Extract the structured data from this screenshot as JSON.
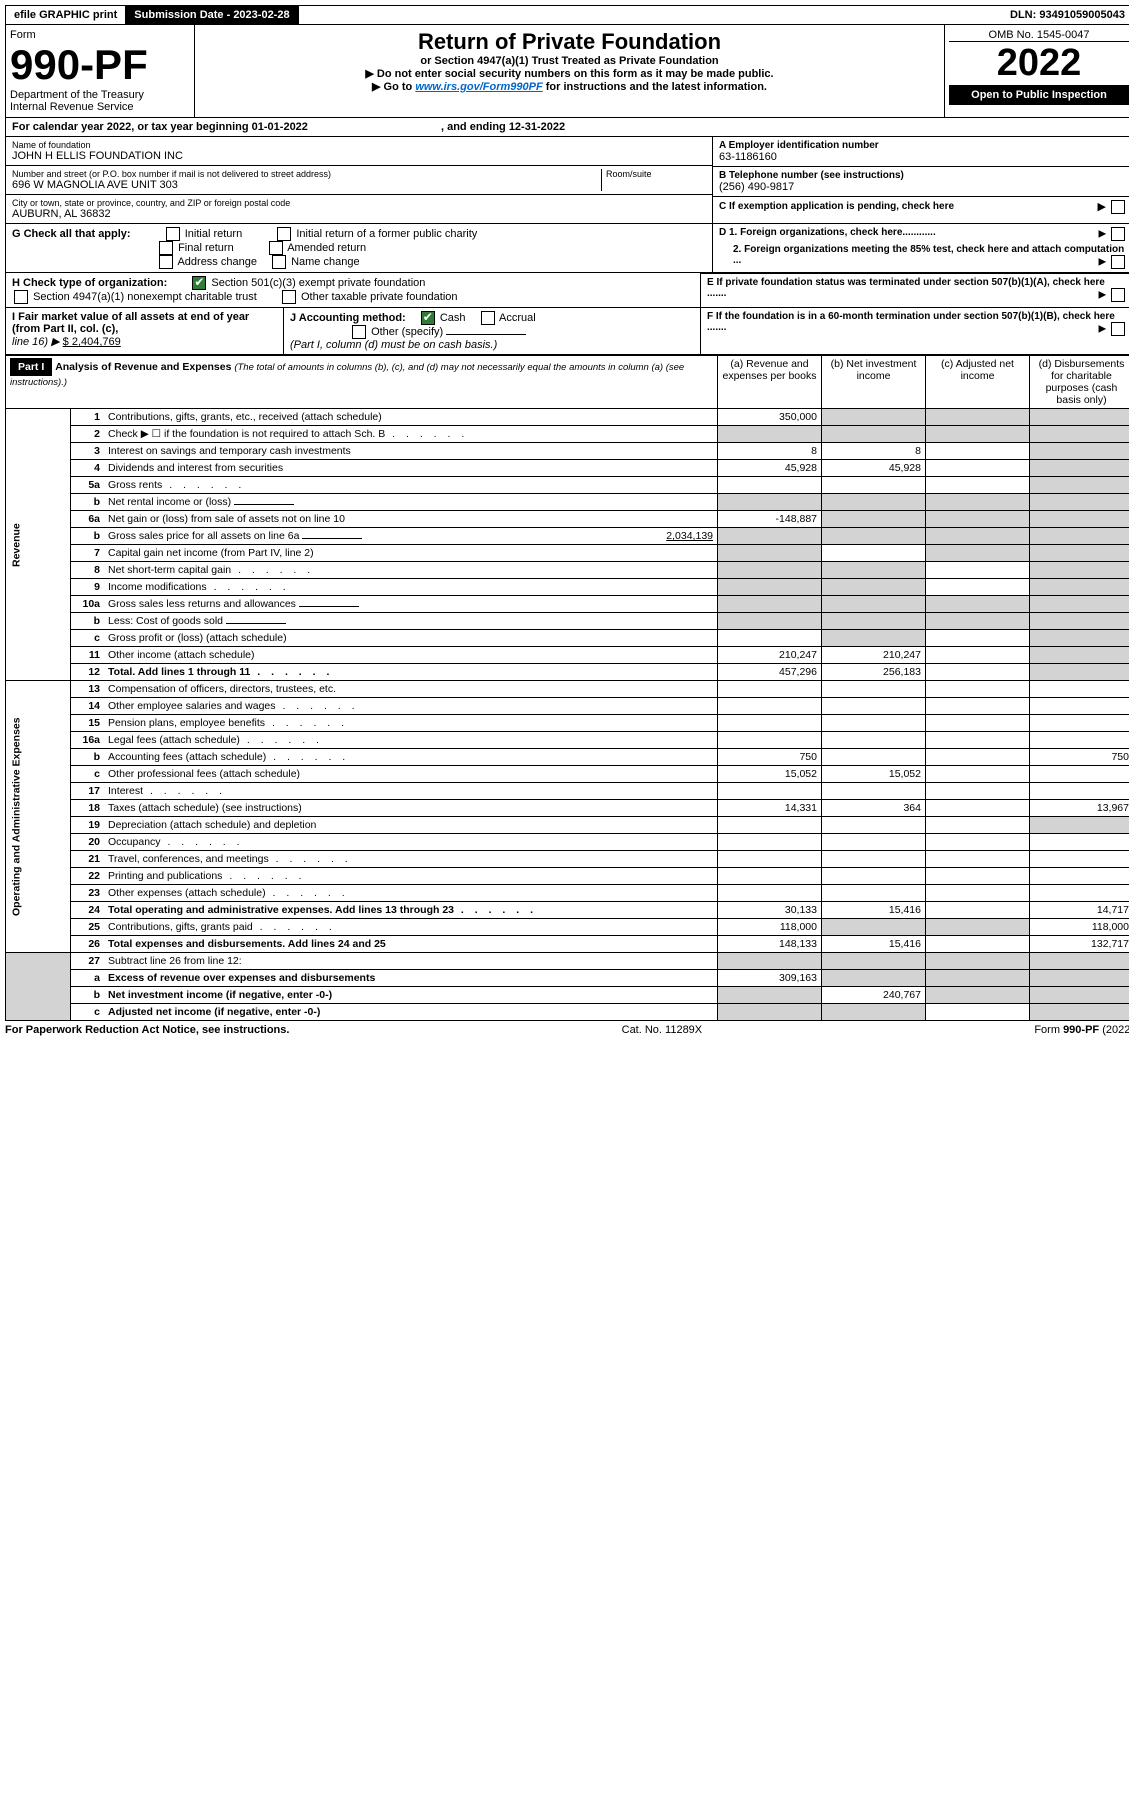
{
  "top_bar": {
    "efile": "efile GRAPHIC print",
    "sub_label": "Submission Date - 2023-02-28",
    "dln": "DLN: 93491059005043"
  },
  "header": {
    "form_label": "Form",
    "form_num": "990-PF",
    "dept1": "Department of the Treasury",
    "dept2": "Internal Revenue Service",
    "title": "Return of Private Foundation",
    "subtitle": "or Section 4947(a)(1) Trust Treated as Private Foundation",
    "instr1": "▶ Do not enter social security numbers on this form as it may be made public.",
    "instr2_pre": "▶ Go to ",
    "instr2_link": "www.irs.gov/Form990PF",
    "instr2_post": " for instructions and the latest information.",
    "omb": "OMB No. 1545-0047",
    "year": "2022",
    "open": "Open to Public Inspection"
  },
  "cal_year": "For calendar year 2022, or tax year beginning 01-01-2022",
  "cal_year_end": ", and ending 12-31-2022",
  "name_label": "Name of foundation",
  "name": "JOHN H ELLIS FOUNDATION INC",
  "addr_label": "Number and street (or P.O. box number if mail is not delivered to street address)",
  "room_label": "Room/suite",
  "addr": "696 W MAGNOLIA AVE UNIT 303",
  "city_label": "City or town, state or province, country, and ZIP or foreign postal code",
  "city": "AUBURN, AL  36832",
  "ein_label": "A Employer identification number",
  "ein": "63-1186160",
  "phone_label": "B Telephone number (see instructions)",
  "phone": "(256) 490-9817",
  "c_label": "C If exemption application is pending, check here",
  "g_label": "G Check all that apply:",
  "g_opts": [
    "Initial return",
    "Final return",
    "Address change",
    "Initial return of a former public charity",
    "Amended return",
    "Name change"
  ],
  "d1": "D 1. Foreign organizations, check here............",
  "d2": "2. Foreign organizations meeting the 85% test, check here and attach computation ...",
  "e_label": "E  If private foundation status was terminated under section 507(b)(1)(A), check here .......",
  "h_label": "H Check type of organization:",
  "h1": "Section 501(c)(3) exempt private foundation",
  "h2": "Section 4947(a)(1) nonexempt charitable trust",
  "h3": "Other taxable private foundation",
  "f_label": "F  If the foundation is in a 60-month termination under section 507(b)(1)(B), check here .......",
  "i_label": "I Fair market value of all assets at end of year (from Part II, col. (c),",
  "i_line": "line 16) ▶",
  "i_val": "$  2,404,769",
  "j_label": "J Accounting method:",
  "j_cash": "Cash",
  "j_accrual": "Accrual",
  "j_other": "Other (specify)",
  "j_note": "(Part I, column (d) must be on cash basis.)",
  "part1": "Part I",
  "part1_title": "Analysis of Revenue and Expenses",
  "part1_note": " (The total of amounts in columns (b), (c), and (d) may not necessarily equal the amounts in column (a) (see instructions).)",
  "cols": {
    "a": "(a) Revenue and expenses per books",
    "b": "(b) Net investment income",
    "c": "(c) Adjusted net income",
    "d": "(d) Disbursements for charitable purposes (cash basis only)"
  },
  "vert": {
    "rev": "Revenue",
    "exp": "Operating and Administrative Expenses"
  },
  "rows": [
    {
      "n": "1",
      "t": "Contributions, gifts, grants, etc., received (attach schedule)",
      "a": "350,000",
      "shade_b": true,
      "shade_c": true,
      "shade_d": true
    },
    {
      "n": "2",
      "t": "Check ▶ ☐ if the foundation is not required to attach Sch. B",
      "dots": true,
      "shade_a": true,
      "shade_b": true,
      "shade_c": true,
      "shade_d": true
    },
    {
      "n": "3",
      "t": "Interest on savings and temporary cash investments",
      "a": "8",
      "b": "8",
      "shade_d": true
    },
    {
      "n": "4",
      "t": "Dividends and interest from securities",
      "a": "45,928",
      "b": "45,928",
      "shade_d": true
    },
    {
      "n": "5a",
      "t": "Gross rents",
      "dots": true,
      "shade_d": true
    },
    {
      "n": "b",
      "t": "Net rental income or (loss)",
      "inset": true,
      "shade_a": true,
      "shade_b": true,
      "shade_c": true,
      "shade_d": true
    },
    {
      "n": "6a",
      "t": "Net gain or (loss) from sale of assets not on line 10",
      "a": "-148,887",
      "shade_b": true,
      "shade_c": true,
      "shade_d": true
    },
    {
      "n": "b",
      "t": "Gross sales price for all assets on line 6a",
      "inset": true,
      "iv": "2,034,139",
      "shade_a": true,
      "shade_b": true,
      "shade_c": true,
      "shade_d": true
    },
    {
      "n": "7",
      "t": "Capital gain net income (from Part IV, line 2)",
      "shade_a": true,
      "shade_c": true,
      "shade_d": true
    },
    {
      "n": "8",
      "t": "Net short-term capital gain",
      "dots": true,
      "shade_a": true,
      "shade_b": true,
      "shade_d": true
    },
    {
      "n": "9",
      "t": "Income modifications",
      "dots": true,
      "shade_a": true,
      "shade_b": true,
      "shade_d": true
    },
    {
      "n": "10a",
      "t": "Gross sales less returns and allowances",
      "inset": true,
      "shade_a": true,
      "shade_b": true,
      "shade_c": true,
      "shade_d": true
    },
    {
      "n": "b",
      "t": "Less: Cost of goods sold",
      "inset": true,
      "shade_a": true,
      "shade_b": true,
      "shade_c": true,
      "shade_d": true
    },
    {
      "n": "c",
      "t": "Gross profit or (loss) (attach schedule)",
      "shade_b": true,
      "shade_d": true
    },
    {
      "n": "11",
      "t": "Other income (attach schedule)",
      "a": "210,247",
      "b": "210,247",
      "shade_d": true
    },
    {
      "n": "12",
      "t": "Total. Add lines 1 through 11",
      "bold": true,
      "dots": true,
      "a": "457,296",
      "b": "256,183",
      "shade_d": true
    }
  ],
  "exp_rows": [
    {
      "n": "13",
      "t": "Compensation of officers, directors, trustees, etc."
    },
    {
      "n": "14",
      "t": "Other employee salaries and wages",
      "dots": true
    },
    {
      "n": "15",
      "t": "Pension plans, employee benefits",
      "dots": true
    },
    {
      "n": "16a",
      "t": "Legal fees (attach schedule)",
      "dots": true
    },
    {
      "n": "b",
      "t": "Accounting fees (attach schedule)",
      "dots": true,
      "a": "750",
      "d": "750"
    },
    {
      "n": "c",
      "t": "Other professional fees (attach schedule)",
      "a": "15,052",
      "b": "15,052"
    },
    {
      "n": "17",
      "t": "Interest",
      "dots": true
    },
    {
      "n": "18",
      "t": "Taxes (attach schedule) (see instructions)",
      "a": "14,331",
      "b": "364",
      "d": "13,967"
    },
    {
      "n": "19",
      "t": "Depreciation (attach schedule) and depletion",
      "shade_d": true
    },
    {
      "n": "20",
      "t": "Occupancy",
      "dots": true
    },
    {
      "n": "21",
      "t": "Travel, conferences, and meetings",
      "dots": true
    },
    {
      "n": "22",
      "t": "Printing and publications",
      "dots": true
    },
    {
      "n": "23",
      "t": "Other expenses (attach schedule)",
      "dots": true
    },
    {
      "n": "24",
      "t": "Total operating and administrative expenses. Add lines 13 through 23",
      "bold": true,
      "dots": true,
      "a": "30,133",
      "b": "15,416",
      "d": "14,717"
    },
    {
      "n": "25",
      "t": "Contributions, gifts, grants paid",
      "dots": true,
      "a": "118,000",
      "shade_b": true,
      "shade_c": true,
      "d": "118,000"
    },
    {
      "n": "26",
      "t": "Total expenses and disbursements. Add lines 24 and 25",
      "bold": true,
      "a": "148,133",
      "b": "15,416",
      "d": "132,717"
    }
  ],
  "sub_rows": [
    {
      "n": "27",
      "t": "Subtract line 26 from line 12:",
      "shade_a": true,
      "shade_b": true,
      "shade_c": true,
      "shade_d": true
    },
    {
      "n": "a",
      "t": "Excess of revenue over expenses and disbursements",
      "bold": true,
      "a": "309,163",
      "shade_b": true,
      "shade_c": true,
      "shade_d": true
    },
    {
      "n": "b",
      "t": "Net investment income (if negative, enter -0-)",
      "bold": true,
      "shade_a": true,
      "b": "240,767",
      "shade_c": true,
      "shade_d": true
    },
    {
      "n": "c",
      "t": "Adjusted net income (if negative, enter -0-)",
      "bold": true,
      "shade_a": true,
      "shade_b": true,
      "shade_d": true
    }
  ],
  "footer": {
    "left": "For Paperwork Reduction Act Notice, see instructions.",
    "mid": "Cat. No. 11289X",
    "right": "Form 990-PF (2022)"
  }
}
